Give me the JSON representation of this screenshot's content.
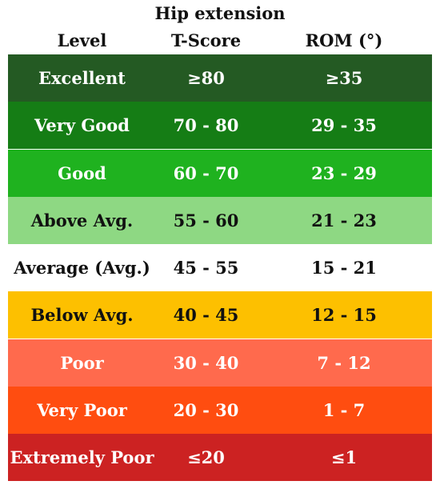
{
  "title": "Hip extension",
  "headers": {
    "level": "Level",
    "tscore": "T-Score",
    "rom": "ROM (°)"
  },
  "rows": [
    {
      "level": "Excellent",
      "tscore": "≥80",
      "rom": "≥35",
      "bg": "#245a23",
      "fg": "#ffffff"
    },
    {
      "level": "Very Good",
      "tscore": "70  -  80",
      "rom": "29  -  35",
      "bg": "#157d15",
      "fg": "#ffffff"
    },
    {
      "level": "Good",
      "tscore": "60  -  70",
      "rom": "23  -  29",
      "bg": "#1fb21f",
      "fg": "#ffffff"
    },
    {
      "level": "Above Avg.",
      "tscore": "55  -  60",
      "rom": "21  -  23",
      "bg": "#8ed883",
      "fg": "#111111"
    },
    {
      "level": "Average (Avg.)",
      "tscore": "45  -  55",
      "rom": "15  -  21",
      "bg": "#ffffff",
      "fg": "#111111"
    },
    {
      "level": "Below Avg.",
      "tscore": "40  -  45",
      "rom": "12  -  15",
      "bg": "#fdc000",
      "fg": "#111111"
    },
    {
      "level": "Poor",
      "tscore": "30  -  40",
      "rom": "7  -  12",
      "bg": "#ff6a4d",
      "fg": "#ffffff"
    },
    {
      "level": "Very Poor",
      "tscore": "20  -  30",
      "rom": "1  -  7",
      "bg": "#ff4d10",
      "fg": "#ffffff"
    },
    {
      "level": "Extremely Poor",
      "tscore": "≤20",
      "rom": "≤1",
      "bg": "#cc2222",
      "fg": "#ffffff"
    }
  ]
}
